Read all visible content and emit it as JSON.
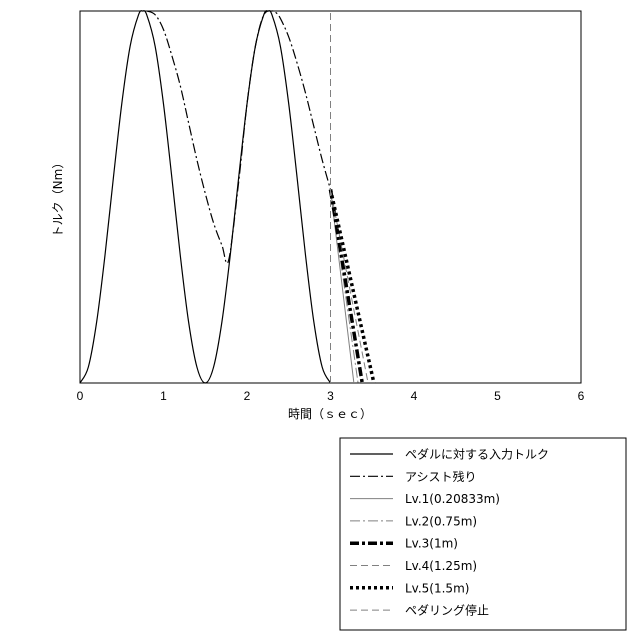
{
  "chart_data": {
    "type": "line",
    "xlabel": "時間（ｓｅｃ）",
    "ylabel": "トルク（Nm）",
    "xlim": [
      0,
      6
    ],
    "ylim": [
      0,
      1
    ],
    "xticks": [
      "0",
      "1",
      "2",
      "3",
      "4",
      "5",
      "6"
    ],
    "grid": false,
    "legend_position": "bottom-right",
    "series": [
      {
        "name": "ペダルに対する入力トルク",
        "style": "solid",
        "color": "#000000",
        "width": 1.2,
        "x": [
          0,
          0.1,
          0.2,
          0.3,
          0.4,
          0.5,
          0.6,
          0.7,
          0.75,
          0.8,
          0.9,
          1.0,
          1.1,
          1.2,
          1.3,
          1.4,
          1.5,
          1.6,
          1.7,
          1.8,
          1.9,
          2.0,
          2.1,
          2.2,
          2.25,
          2.3,
          2.4,
          2.5,
          2.6,
          2.7,
          2.8,
          2.9,
          3.0
        ],
        "y": [
          0,
          0.043,
          0.165,
          0.345,
          0.552,
          0.75,
          0.905,
          0.989,
          1.0,
          0.989,
          0.905,
          0.75,
          0.552,
          0.345,
          0.165,
          0.043,
          0,
          0.043,
          0.165,
          0.345,
          0.552,
          0.75,
          0.905,
          0.989,
          1.0,
          0.989,
          0.905,
          0.75,
          0.552,
          0.345,
          0.165,
          0.043,
          0
        ]
      },
      {
        "name": "アシスト残り",
        "style": "dashdot",
        "color": "#000000",
        "width": 1.2,
        "x": [
          0.8,
          0.9,
          1.0,
          1.1,
          1.2,
          1.3,
          1.4,
          1.5,
          1.6,
          1.7,
          1.78,
          1.9,
          2.0,
          2.1,
          2.2,
          2.3,
          2.35,
          2.4,
          2.5,
          2.6,
          2.7,
          2.8,
          2.9,
          3.0
        ],
        "y": [
          1.0,
          0.99,
          0.95,
          0.88,
          0.8,
          0.7,
          0.6,
          0.51,
          0.43,
          0.37,
          0.33,
          0.54,
          0.75,
          0.905,
          0.989,
          1.0,
          0.995,
          0.98,
          0.93,
          0.86,
          0.78,
          0.69,
          0.6,
          0.52
        ]
      },
      {
        "name": "Lv.1(0.20833m)",
        "style": "solid",
        "color": "#808080",
        "width": 1,
        "x": [
          3.0,
          3.28
        ],
        "y": [
          0.52,
          0
        ]
      },
      {
        "name": "Lv.2(0.75m)",
        "style": "dashdot",
        "color": "#808080",
        "width": 1,
        "x": [
          3.0,
          3.33
        ],
        "y": [
          0.52,
          0
        ]
      },
      {
        "name": "Lv.3(1m)",
        "style": "dashdot",
        "color": "#000000",
        "width": 3.5,
        "x": [
          3.0,
          3.38
        ],
        "y": [
          0.52,
          0
        ]
      },
      {
        "name": "Lv.4(1.25m)",
        "style": "dashed",
        "color": "#808080",
        "width": 1,
        "x": [
          3.0,
          3.45
        ],
        "y": [
          0.52,
          0
        ]
      },
      {
        "name": "Lv.5(1.5m)",
        "style": "dotted",
        "color": "#000000",
        "width": 3.5,
        "x": [
          3.0,
          3.52
        ],
        "y": [
          0.52,
          0
        ]
      },
      {
        "name": "ペダリング停止",
        "style": "dashed",
        "color": "#808080",
        "width": 1,
        "x": [
          3.0,
          3.0
        ],
        "y": [
          0,
          1
        ]
      }
    ]
  }
}
